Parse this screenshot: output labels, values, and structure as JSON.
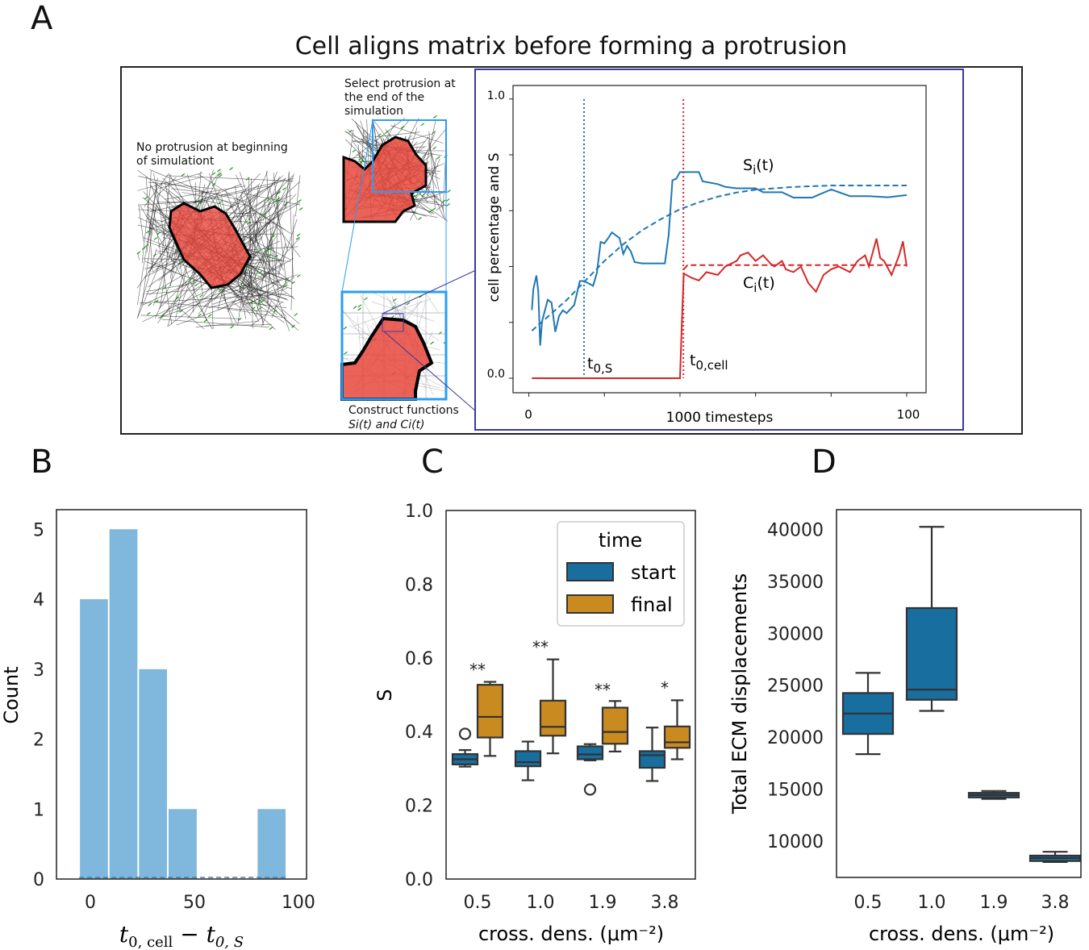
{
  "figure": {
    "panel_letters": [
      "A",
      "B",
      "C",
      "D"
    ],
    "panel_a_title": "Cell aligns matrix before forming a protrusion",
    "captions": {
      "start_line1": "No protrusion at beginning",
      "start_line2": "of simulationt",
      "select_line1": "Select protrusion at",
      "select_line2": "the end of the",
      "select_line3": "simulation",
      "construct_line1": "Construct functions",
      "construct_line2": "Si(t) and Ci(t)"
    }
  },
  "colors": {
    "s_line": "#1f77b4",
    "c_line": "#d62728",
    "hist_bar": "#7fb8dc",
    "start_box": "#176e9f",
    "final_box": "#c98a20",
    "frame_purple": "#3a3a9a",
    "zoom_blue": "#2a9df4"
  },
  "chart_data": [
    {
      "id": "A",
      "type": "line",
      "ylabel": "cell percentage and S",
      "xlabel": "1000 timesteps",
      "x_tick_labels": {
        "start": "0",
        "end": "100"
      },
      "y_tick_labels": {
        "top": "1.0",
        "bottom": "0.0"
      },
      "xlim": [
        0,
        100
      ],
      "ylim": [
        0,
        1
      ],
      "x_ticks": [
        0,
        20,
        40,
        60,
        80,
        100
      ],
      "y_ticks": [
        0,
        0.2,
        0.4,
        0.6,
        0.8,
        1.0
      ],
      "annotations": {
        "s_label": "S",
        "s_sub": "i",
        "c_label": "C",
        "c_sub": "i",
        "arg": "(t)",
        "t0s": "t",
        "t0s_sub": "0,S",
        "t0cell": "t",
        "t0cell_sub": "0,cell"
      },
      "vlines": {
        "t0_S": 14.6,
        "t0_cell": 40.9
      },
      "series": [
        {
          "name": "S_i(t)",
          "style": "solid",
          "x": [
            0.8,
            1.2,
            2,
            2.5,
            3,
            3.5,
            5,
            6,
            7,
            8,
            9,
            10,
            12,
            13.5,
            14.6,
            17,
            18,
            19,
            20,
            21,
            22,
            24,
            25,
            26,
            27,
            28,
            30,
            36,
            37,
            38,
            39,
            40,
            45,
            46,
            50,
            52,
            55,
            60,
            62,
            67,
            70,
            75,
            80,
            85,
            90,
            95,
            100
          ],
          "y": [
            0.244,
            0.32,
            0.368,
            0.31,
            0.117,
            0.204,
            0.281,
            0.271,
            0.166,
            0.223,
            0.243,
            0.233,
            0.262,
            0.348,
            0.348,
            0.331,
            0.377,
            0.488,
            0.483,
            0.502,
            0.522,
            0.502,
            0.445,
            0.474,
            0.454,
            0.416,
            0.411,
            0.411,
            0.512,
            0.709,
            0.714,
            0.738,
            0.738,
            0.705,
            0.695,
            0.685,
            0.68,
            0.68,
            0.666,
            0.666,
            0.647,
            0.647,
            0.676,
            0.652,
            0.652,
            0.648,
            0.656
          ]
        },
        {
          "name": "S fit",
          "style": "dashed",
          "x": [
            0.8,
            5,
            10,
            15,
            20,
            25,
            30,
            35,
            40,
            45,
            50,
            55,
            60,
            70,
            80,
            90,
            100
          ],
          "y": [
            0.17,
            0.22,
            0.28,
            0.35,
            0.42,
            0.48,
            0.53,
            0.57,
            0.605,
            0.63,
            0.65,
            0.665,
            0.675,
            0.685,
            0.69,
            0.69,
            0.69
          ]
        },
        {
          "name": "C_i(t)",
          "style": "solid",
          "x": [
            0.8,
            40,
            40.5,
            41,
            43,
            45,
            47,
            50,
            52,
            55,
            56,
            58,
            60,
            62,
            64,
            65,
            67,
            68,
            70,
            72,
            74,
            76,
            78,
            80,
            82,
            85,
            87,
            89,
            90,
            92,
            93,
            94,
            96,
            98,
            99,
            100
          ],
          "y": [
            0,
            0,
            0.2,
            0.375,
            0.36,
            0.35,
            0.38,
            0.37,
            0.4,
            0.42,
            0.44,
            0.45,
            0.42,
            0.44,
            0.41,
            0.4,
            0.42,
            0.39,
            0.38,
            0.4,
            0.34,
            0.31,
            0.37,
            0.39,
            0.4,
            0.38,
            0.42,
            0.44,
            0.4,
            0.5,
            0.43,
            0.42,
            0.37,
            0.44,
            0.49,
            0.4
          ]
        },
        {
          "name": "C fit",
          "style": "dashed",
          "x": [
            41,
            42,
            100
          ],
          "y": [
            0.39,
            0.405,
            0.405
          ]
        }
      ]
    },
    {
      "id": "B",
      "type": "bar",
      "xlabel_main": "t",
      "xlabel_sub1": "0, cell",
      "xlabel_minus": " − t",
      "xlabel_sub2": "0, S",
      "ylabel": "Count",
      "bin_edges": [
        -5.4,
        8.8,
        23.0,
        37.2,
        51.5,
        65.7,
        80.0,
        94.2
      ],
      "values": [
        4,
        5,
        3,
        1,
        0,
        0,
        1
      ],
      "xlim": [
        -16.3,
        103.9
      ],
      "ylim": [
        0,
        5.28
      ],
      "x_ticks": [
        0,
        50,
        100
      ],
      "y_ticks": [
        0,
        1,
        2,
        3,
        4,
        5
      ],
      "grid": false
    },
    {
      "id": "C",
      "type": "box",
      "ylabel": "S",
      "xlabel": "cross. dens. (μm⁻²)",
      "categories": [
        "0.5",
        "1.0",
        "1.9",
        "3.8"
      ],
      "ylim": [
        0,
        1.0
      ],
      "y_ticks": [
        "0.0",
        "0.2",
        "0.4",
        "0.6",
        "0.8",
        "1.0"
      ],
      "legend": {
        "title": "time",
        "position": "top-right",
        "entries": [
          "start",
          "final"
        ]
      },
      "series": [
        {
          "name": "start",
          "boxes": [
            {
              "whislo": 0.305,
              "q1": 0.311,
              "med": 0.325,
              "q3": 0.339,
              "whishi": 0.35,
              "fliers": [
                0.394
              ]
            },
            {
              "whislo": 0.268,
              "q1": 0.306,
              "med": 0.317,
              "q3": 0.347,
              "whishi": 0.373,
              "fliers": []
            },
            {
              "whislo": 0.322,
              "q1": 0.325,
              "med": 0.338,
              "q3": 0.36,
              "whishi": 0.366,
              "fliers": [
                0.243
              ]
            },
            {
              "whislo": 0.266,
              "q1": 0.302,
              "med": 0.336,
              "q3": 0.347,
              "whishi": 0.411,
              "fliers": []
            }
          ]
        },
        {
          "name": "final",
          "boxes": [
            {
              "whislo": 0.334,
              "q1": 0.384,
              "med": 0.44,
              "q3": 0.527,
              "whishi": 0.535,
              "fliers": []
            },
            {
              "whislo": 0.341,
              "q1": 0.389,
              "med": 0.413,
              "q3": 0.484,
              "whishi": 0.596,
              "fliers": []
            },
            {
              "whislo": 0.346,
              "q1": 0.367,
              "med": 0.399,
              "q3": 0.465,
              "whishi": 0.483,
              "fliers": []
            },
            {
              "whislo": 0.325,
              "q1": 0.356,
              "med": 0.371,
              "q3": 0.414,
              "whishi": 0.485,
              "fliers": []
            }
          ]
        }
      ],
      "significance": [
        {
          "label": "**",
          "y": 0.574
        },
        {
          "label": "**",
          "y": 0.636
        },
        {
          "label": "**",
          "y": 0.52
        },
        {
          "label": "*",
          "y": 0.525
        }
      ]
    },
    {
      "id": "D",
      "type": "box",
      "ylabel": "Total ECM displacements",
      "xlabel": "cross. dens. (μm⁻²)",
      "categories": [
        "0.5",
        "1.0",
        "1.9",
        "3.8"
      ],
      "ylim": [
        6500,
        41900
      ],
      "y_ticks": [
        10000,
        15000,
        20000,
        25000,
        30000,
        35000,
        40000
      ],
      "boxes": [
        {
          "whislo": 18370,
          "q1": 20310,
          "med": 22280,
          "q3": 24250,
          "whishi": 26190
        },
        {
          "whislo": 22530,
          "q1": 23600,
          "med": 24580,
          "q3": 32430,
          "whishi": 40250
        },
        {
          "whislo": 14060,
          "q1": 14200,
          "med": 14430,
          "q3": 14640,
          "whishi": 14820
        },
        {
          "whislo": 7980,
          "q1": 8080,
          "med": 8370,
          "q3": 8600,
          "whishi": 8970
        }
      ]
    }
  ]
}
